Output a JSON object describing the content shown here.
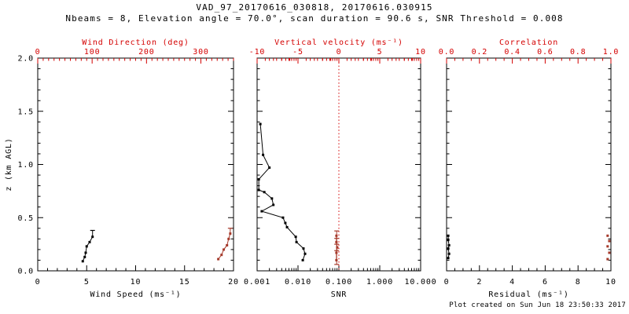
{
  "header": {
    "title": "VAD_97_20170616_030818, 20170616.030915",
    "subtitle": "Nbeams = 8, Elevation angle = 70.0°, scan duration = 90.6 s, SNR Threshold = 0.008"
  },
  "footer": {
    "created": "Plot created on Sun Jun 18 23:50:33 2017"
  },
  "colors": {
    "background": "#ffffff",
    "black": "#000000",
    "axis_red": "#d40000",
    "data_red": "#a5392a"
  },
  "chart_data": [
    {
      "id": "wind",
      "type": "scatter",
      "y_axis": {
        "label": "z (km AGL)",
        "lim": [
          0,
          2
        ],
        "ticks": [
          0,
          0.5,
          1,
          1.5,
          2
        ],
        "tick_labels": [
          "0.0",
          "0.5",
          "1.0",
          "1.5",
          "2.0"
        ],
        "minor_step": 0.1,
        "show_labels": true
      },
      "bottom_axis": {
        "label": "Wind Speed (ms⁻¹)",
        "lim": [
          0,
          20
        ],
        "ticks": [
          0,
          5,
          10,
          15,
          20
        ],
        "tick_labels": [
          "0",
          "5",
          "10",
          "15",
          "20"
        ],
        "minor_step": 1,
        "color": "black"
      },
      "top_axis": {
        "label": "Wind Direction (deg)",
        "lim": [
          0,
          360
        ],
        "ticks": [
          0,
          100,
          200,
          300
        ],
        "tick_labels": [
          "0",
          "100",
          "200",
          "300"
        ],
        "minor_step": 10,
        "color": "red"
      },
      "series": [
        {
          "name": "wind-speed",
          "axis": "bottom",
          "color": "black",
          "connect": true,
          "z": [
            0.09,
            0.13,
            0.17,
            0.23,
            0.27,
            0.32
          ],
          "values": [
            4.6,
            4.8,
            4.9,
            5.0,
            5.3,
            5.6
          ],
          "whiskers": [
            {
              "value": 5.6,
              "z0": 0.32,
              "z1": 0.38,
              "caps": [
                0.38
              ]
            }
          ]
        },
        {
          "name": "wind-direction",
          "axis": "top",
          "color": "red_data",
          "connect": true,
          "z": [
            0.11,
            0.15,
            0.2,
            0.24,
            0.3,
            0.35
          ],
          "values": [
            332,
            338,
            342,
            348,
            351,
            354
          ],
          "whiskers": [
            {
              "value": 354,
              "z0": 0.35,
              "z1": 0.4,
              "caps": [
                0.4
              ]
            }
          ]
        }
      ]
    },
    {
      "id": "snr",
      "type": "scatter",
      "y_axis": {
        "label": "",
        "lim": [
          0,
          2
        ],
        "ticks": [
          0,
          0.5,
          1,
          1.5,
          2
        ],
        "tick_labels": [
          "0.0",
          "0.5",
          "1.0",
          "1.5",
          "2.0"
        ],
        "minor_step": 0.1,
        "show_labels": false
      },
      "bottom_axis": {
        "label": "SNR",
        "lim": [
          0.001,
          10
        ],
        "log": true,
        "ticks": [
          0.001,
          0.01,
          0.1,
          1,
          10
        ],
        "tick_labels": [
          "0.001",
          "0.010",
          "0.100",
          "1.000",
          "10.000"
        ],
        "color": "black"
      },
      "top_axis": {
        "label": "Vertical velocity (ms⁻¹)",
        "lim": [
          -10,
          10
        ],
        "ticks": [
          -10,
          -5,
          0,
          5,
          10
        ],
        "tick_labels": [
          "-10",
          "-5",
          "0",
          "5",
          "10"
        ],
        "minor_step": 1,
        "color": "red"
      },
      "reflines": [
        {
          "axis": "top",
          "value": 0,
          "color": "red",
          "style": "dotted"
        }
      ],
      "series": [
        {
          "name": "snr-profile",
          "axis": "bottom",
          "color": "black",
          "connect": true,
          "z": [
            1.38,
            1.09,
            0.97,
            0.86,
            0.76,
            0.74,
            0.68,
            0.62,
            0.56,
            0.5,
            0.45,
            0.41,
            0.32,
            0.27,
            0.21,
            0.16,
            0.1
          ],
          "values": [
            0.0012,
            0.0014,
            0.002,
            0.0011,
            0.0011,
            0.0015,
            0.0023,
            0.0025,
            0.0013,
            0.0043,
            0.0049,
            0.0054,
            0.0088,
            0.0092,
            0.0136,
            0.0149,
            0.0131
          ]
        },
        {
          "name": "vertical-velocity",
          "axis": "top",
          "color": "red_data",
          "connect": true,
          "z": [
            0.33,
            0.27,
            0.22,
            0.17,
            0.1
          ],
          "values": [
            -0.3,
            -0.3,
            -0.2,
            -0.3,
            -0.3
          ],
          "whiskers": [
            {
              "value": -0.27,
              "z0": 0.06,
              "z1": 0.375,
              "caps": [
                0.375,
                0.305,
                0.25,
                0.19,
                0.06
              ]
            }
          ]
        }
      ]
    },
    {
      "id": "residual",
      "type": "scatter",
      "y_axis": {
        "label": "",
        "lim": [
          0,
          2
        ],
        "ticks": [
          0,
          0.5,
          1,
          1.5,
          2
        ],
        "tick_labels": [
          "0.0",
          "0.5",
          "1.0",
          "1.5",
          "2.0"
        ],
        "minor_step": 0.1,
        "show_labels": false
      },
      "bottom_axis": {
        "label": "Residual (ms⁻¹)",
        "lim": [
          0,
          10
        ],
        "ticks": [
          0,
          2,
          4,
          6,
          8,
          10
        ],
        "tick_labels": [
          "0",
          "2",
          "4",
          "6",
          "8",
          "10"
        ],
        "minor_step": 0.5,
        "color": "black"
      },
      "top_axis": {
        "label": "Correlation",
        "lim": [
          0,
          1
        ],
        "ticks": [
          0,
          0.2,
          0.4,
          0.6,
          0.8,
          1
        ],
        "tick_labels": [
          "0.0",
          "0.2",
          "0.4",
          "0.6",
          "0.8",
          "1.0"
        ],
        "minor_step": 0.05,
        "color": "red"
      },
      "series": [
        {
          "name": "residual",
          "axis": "bottom",
          "color": "black",
          "connect": true,
          "z": [
            0.33,
            0.29,
            0.24,
            0.21,
            0.16,
            0.12
          ],
          "values": [
            0.1,
            0.1,
            0.15,
            0.1,
            0.15,
            0.1
          ]
        },
        {
          "name": "correlation",
          "axis": "top",
          "color": "red_data",
          "connect": false,
          "z": [
            0.33,
            0.28,
            0.23,
            0.17,
            0.11
          ],
          "values": [
            0.98,
            0.99,
            0.98,
            0.99,
            0.98
          ]
        }
      ]
    }
  ]
}
